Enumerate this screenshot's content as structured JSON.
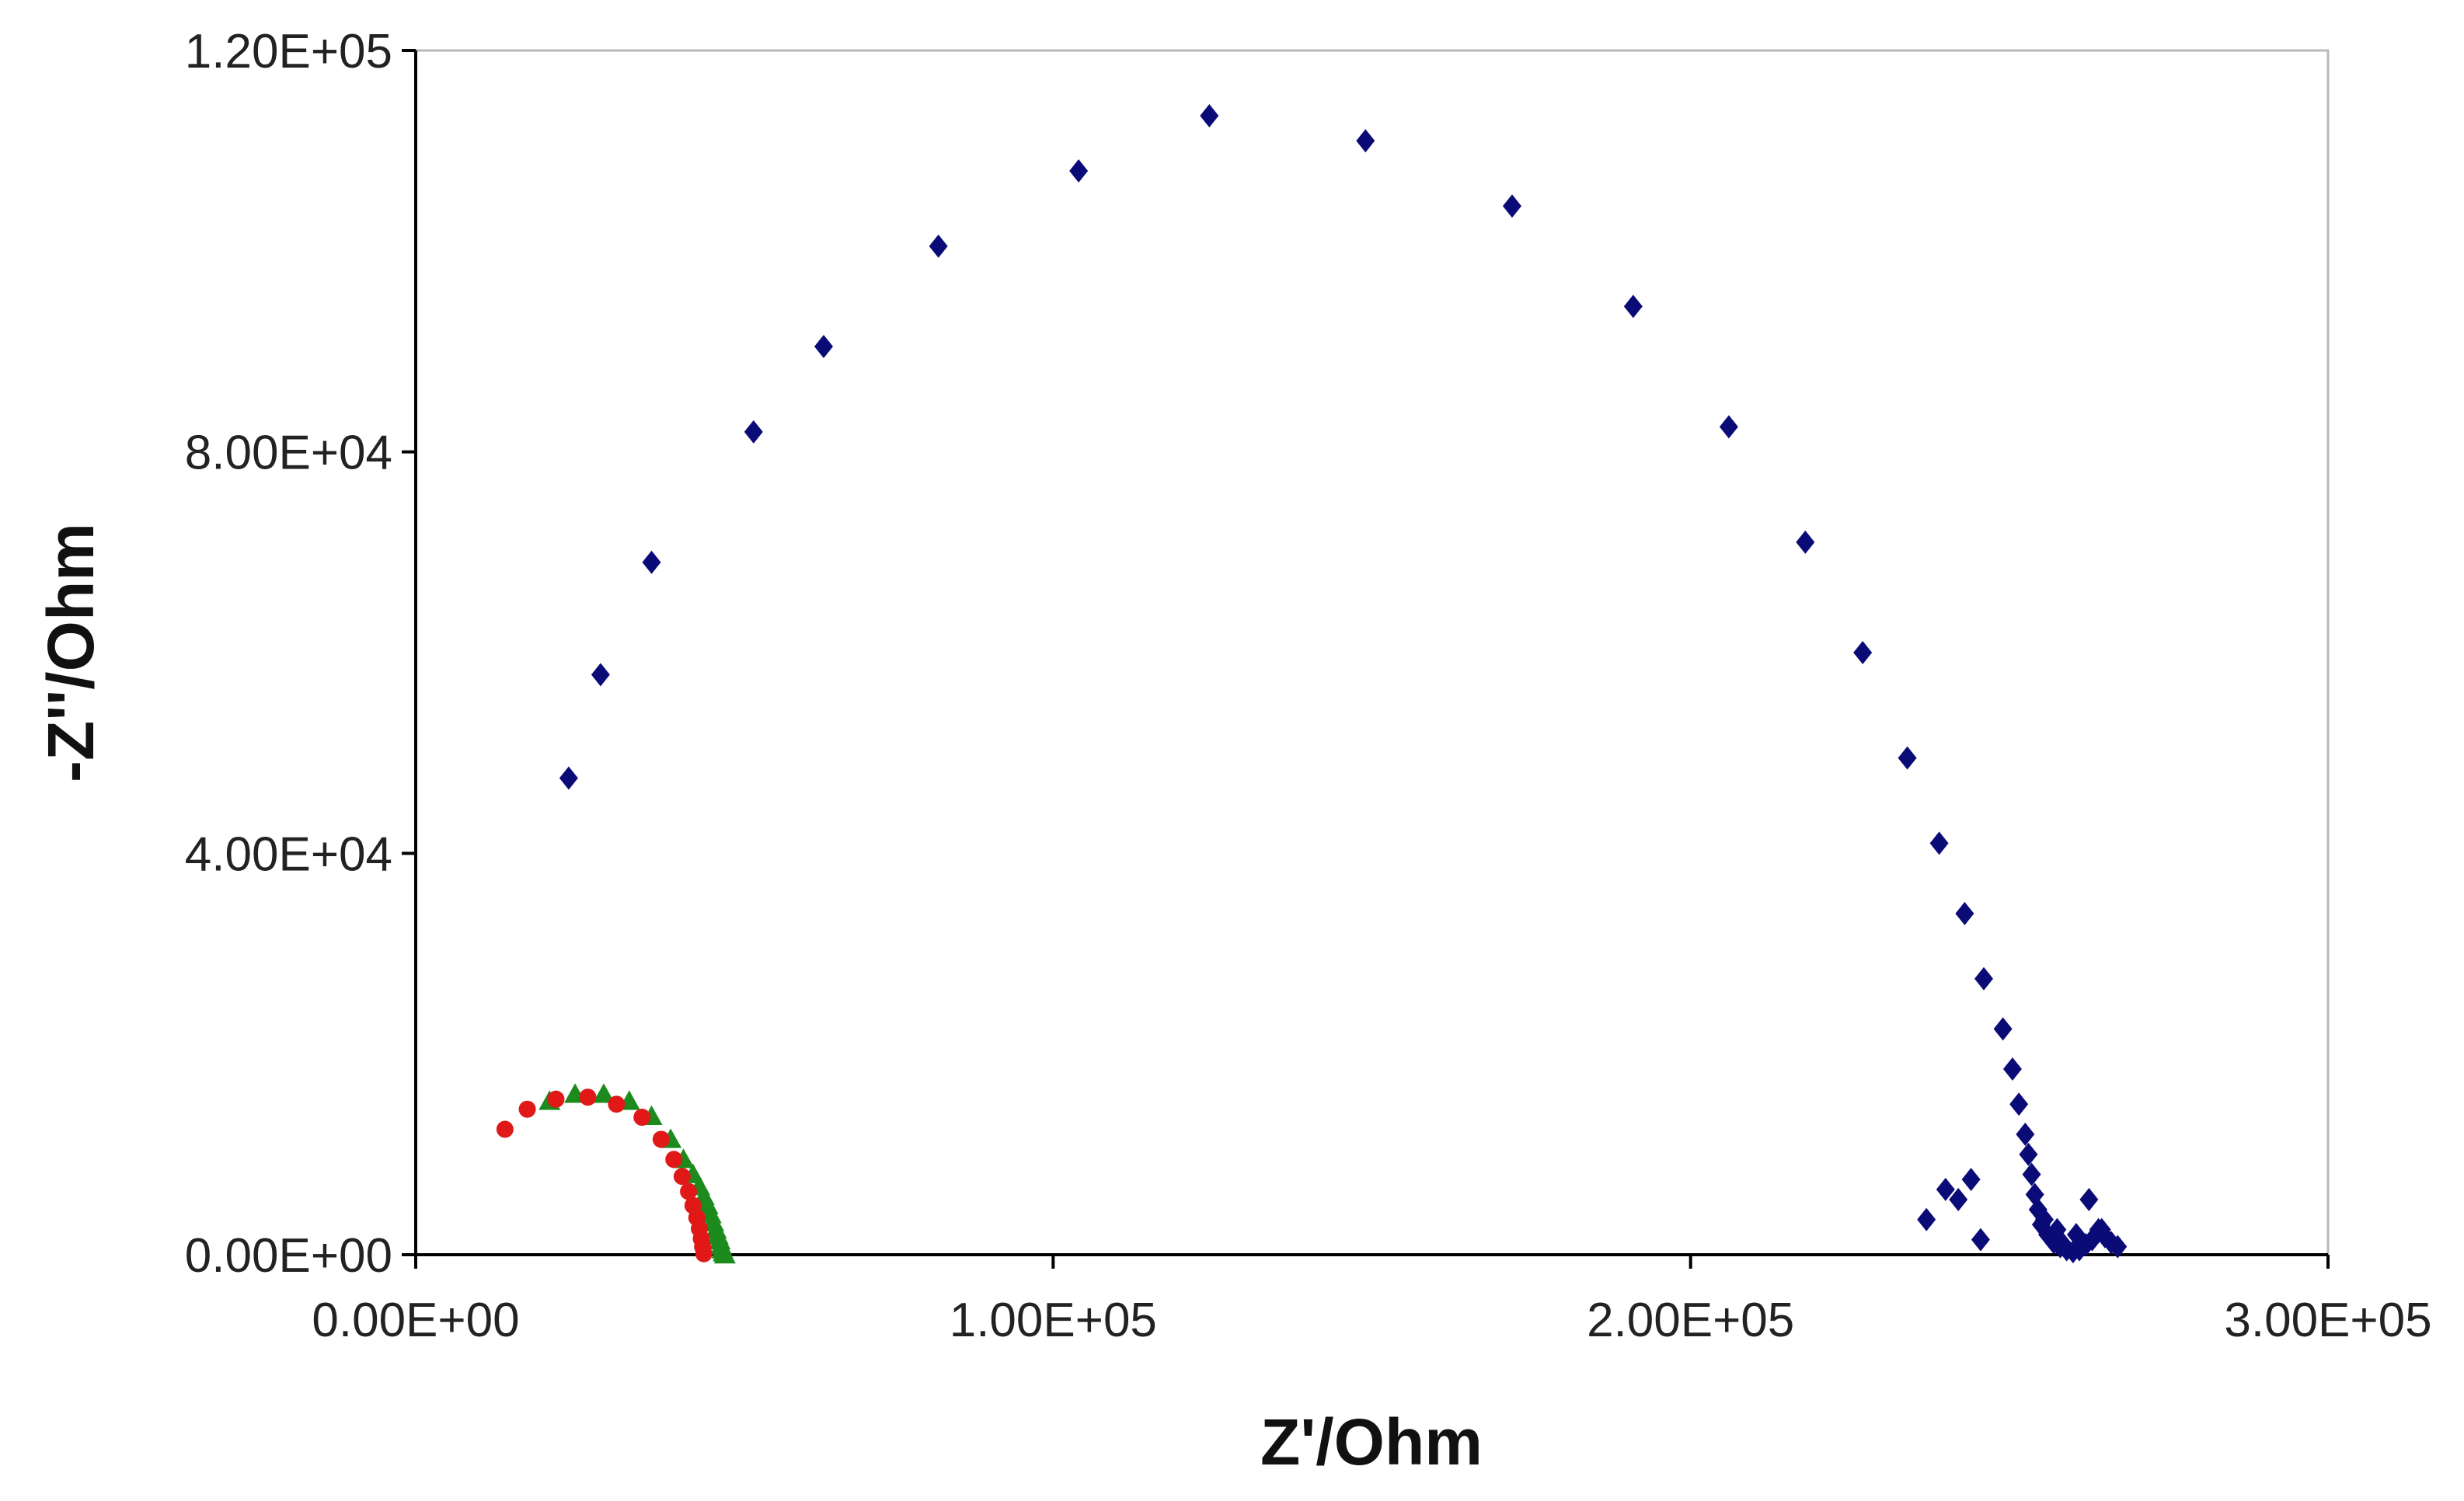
{
  "chart_data": {
    "type": "scatter",
    "title": "",
    "xlabel": "Z'/Ohm",
    "ylabel": "-Z''/Ohm",
    "xlim": [
      0,
      300000
    ],
    "ylim": [
      0,
      120000
    ],
    "x_ticks": [
      0,
      100000,
      200000,
      300000
    ],
    "y_ticks": [
      0,
      40000,
      80000,
      120000
    ],
    "x_tick_labels": [
      "0.00E+00",
      "1.00E+05",
      "2.00E+05",
      "3.00E+05"
    ],
    "y_tick_labels": [
      "0.00E+00",
      "4.00E+04",
      "8.00E+04",
      "1.20E+05"
    ],
    "grid": false,
    "legend": "none",
    "series": [
      {
        "marker": "diamond",
        "color": "#0b0b78",
        "x": [
          24000,
          29000,
          37000,
          53000,
          64000,
          82000,
          104000,
          124500,
          149000,
          172000,
          191000,
          206000,
          218000,
          227000,
          234000,
          239000,
          243000,
          246000,
          249000,
          250500,
          251500,
          252500,
          253000,
          253500,
          254000,
          254500,
          255000,
          256000,
          257000,
          258000,
          259000,
          260000,
          261000,
          262000,
          263000,
          264000,
          265000,
          266000,
          267000,
          255500,
          257500,
          258500,
          260500,
          262500,
          264500,
          237000,
          240000,
          242000,
          244000,
          245500
        ],
        "y": [
          47500,
          57800,
          69000,
          82000,
          90500,
          100500,
          108000,
          113500,
          111000,
          104500,
          94500,
          82500,
          71000,
          60000,
          49500,
          41000,
          34000,
          27500,
          22500,
          18500,
          15000,
          12000,
          10000,
          8000,
          6000,
          4500,
          3000,
          2000,
          1200,
          800,
          500,
          300,
          500,
          1000,
          1500,
          2500,
          1800,
          1200,
          800,
          3500,
          2500,
          1000,
          2000,
          5500,
          2500,
          3500,
          6500,
          5500,
          7500,
          1500
        ]
      },
      {
        "marker": "triangle",
        "color": "#1d8a1d",
        "x": [
          21000,
          25000,
          29500,
          33500,
          37000,
          40000,
          42000,
          43500,
          44500,
          45200,
          45800,
          46300,
          46700,
          47100,
          47400,
          47700,
          47900,
          48100,
          48300,
          48500
        ],
        "y": [
          15300,
          16000,
          16000,
          15300,
          13800,
          11500,
          9500,
          8000,
          6800,
          5800,
          4900,
          4000,
          3200,
          2500,
          1900,
          1400,
          900,
          500,
          200,
          0
        ]
      },
      {
        "marker": "circle",
        "color": "#e01818",
        "x": [
          14000,
          17500,
          22000,
          27000,
          31500,
          35500,
          38500,
          40500,
          41800,
          42800,
          43500,
          44100,
          44500,
          44800,
          45000,
          45200
        ],
        "y": [
          12500,
          14500,
          15500,
          15700,
          15000,
          13700,
          11500,
          9500,
          7800,
          6300,
          4900,
          3700,
          2600,
          1600,
          800,
          100
        ]
      }
    ]
  }
}
